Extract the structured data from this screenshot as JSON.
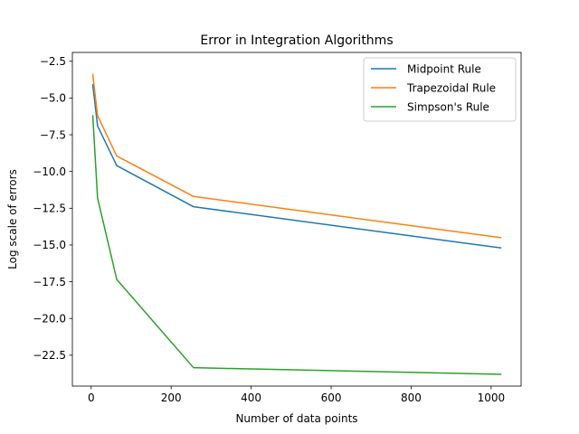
{
  "chart_data": {
    "type": "line",
    "title": "Error in Integration Algorithms",
    "xlabel": "Number of data points",
    "ylabel": "Log scale of errors",
    "x": [
      4,
      16,
      64,
      256,
      1024
    ],
    "series": [
      {
        "name": "Midpoint Rule",
        "color": "#1f77b4",
        "values": [
          -4.1,
          -6.9,
          -9.6,
          -12.4,
          -15.2
        ]
      },
      {
        "name": "Trapezoidal Rule",
        "color": "#ff7f0e",
        "values": [
          -3.4,
          -6.2,
          -8.95,
          -11.7,
          -14.5
        ]
      },
      {
        "name": "Simpson's Rule",
        "color": "#2ca02c",
        "values": [
          -6.2,
          -11.8,
          -17.35,
          -23.35,
          -23.8
        ]
      }
    ],
    "xlim": [
      -47.0,
      1075.0
    ],
    "ylim": [
      -24.6,
      -1.9
    ],
    "xticks": [
      0,
      200,
      400,
      600,
      800,
      1000
    ],
    "xtick_labels": [
      "0",
      "200",
      "400",
      "600",
      "800",
      "1000"
    ],
    "yticks": [
      -2.5,
      -5.0,
      -7.5,
      -10.0,
      -12.5,
      -15.0,
      -17.5,
      -20.0,
      -22.5
    ],
    "ytick_labels": [
      "−2.5",
      "−5.0",
      "−7.5",
      "−10.0",
      "−12.5",
      "−15.0",
      "−17.5",
      "−20.0",
      "−22.5"
    ],
    "grid": false,
    "legend_position": "upper right"
  }
}
